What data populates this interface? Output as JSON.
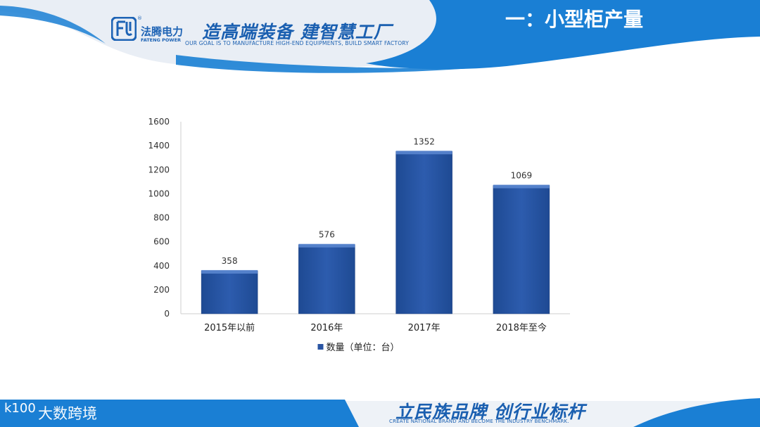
{
  "header": {
    "logo_cn": "法腾电力",
    "logo_en": "FATENG POWER",
    "logo_reg": "®",
    "slogan": "造高端装备 建智慧工厂",
    "tagline": "OUR  GOAL  IS  TO MANUFACTURE HIGH-END EQUIPMENTS, BUILD SMART  FACTORY",
    "title": "一：小型柜产量"
  },
  "footer": {
    "slogan": "立民族品牌 创行业标杆",
    "tagline": "CREATE NATIONAL  BRAND  AND  BECOME THE INDUSTRY  BENCHMARK.",
    "watermark_icon": "k100",
    "watermark_text": "大数跨境"
  },
  "colors": {
    "header_blue": "#1a7fd4",
    "bar_fill": "#2a55a3",
    "bar_top": "#5a86cf"
  },
  "chart_data": {
    "type": "bar",
    "categories": [
      "2015年以前",
      "2016年",
      "2017年",
      "2018年至今"
    ],
    "series": [
      {
        "name": "数量（单位：台）",
        "values": [
          358,
          576,
          1352,
          1069
        ]
      }
    ],
    "data_labels": [
      "358",
      "576",
      "1352",
      "1069"
    ],
    "yticks": [
      "0",
      "200",
      "400",
      "600",
      "800",
      "1000",
      "1200",
      "1400",
      "1600"
    ],
    "ylim": [
      0,
      1600
    ],
    "grid": false,
    "legend": "bottom"
  }
}
